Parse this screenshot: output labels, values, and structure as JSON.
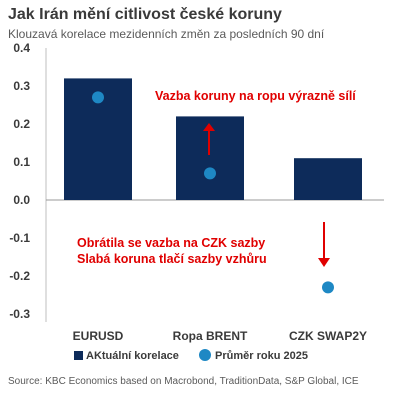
{
  "title": "Jak Irán mění citlivost české koruny",
  "subtitle": "Klouzavá korelace mezidenních změn za posledních 90 dní",
  "source": "Source: KBC Economics based on Macrobond, TraditionData, S&P Global, ICE",
  "chart_data": {
    "type": "bar",
    "categories": [
      "EURUSD",
      "Ropa BRENT",
      "CZK SWAP2Y"
    ],
    "series": [
      {
        "name": "AKtuální korelace",
        "kind": "bar",
        "values": [
          0.32,
          0.22,
          0.11
        ],
        "color": "#0d2b5a"
      },
      {
        "name": "Průměr roku 2025",
        "kind": "dot",
        "values": [
          0.27,
          0.07,
          -0.23
        ],
        "color": "#1e88c4"
      }
    ],
    "ylim": [
      -0.3,
      0.4
    ],
    "yticks": [
      "0.4",
      "0.3",
      "0.2",
      "0.1",
      "0.0",
      "-0.1",
      "-0.2",
      "-0.3"
    ],
    "ytick_values": [
      0.4,
      0.3,
      0.2,
      0.1,
      0.0,
      -0.1,
      -0.2,
      -0.3
    ],
    "legend_position": "bottom",
    "grid": false,
    "annotations": {
      "top_text": "Vazba koruny na ropu výrazně sílí",
      "bottom_line1": "Obrátila se vazba na CZK sazby",
      "bottom_line2": "Slabá koruna tlačí sazby vzhůru",
      "color": "#e00000"
    }
  }
}
